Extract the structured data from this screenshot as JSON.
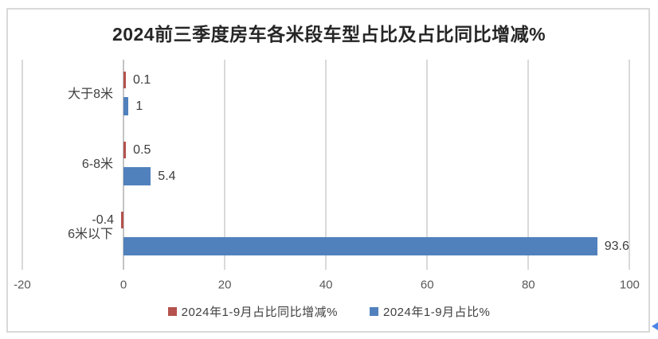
{
  "chart": {
    "title": "2024前三季度房车各米段车型占比及占比同比增减%"
  },
  "chart_data": {
    "type": "bar",
    "orientation": "horizontal",
    "title": "2024前三季度房车各米段车型占比及占比同比增减%",
    "categories": [
      "大于8米",
      "6-8米",
      "6米以下"
    ],
    "series": [
      {
        "name": "2024年1-9月占比同比增减%",
        "color": "#b5524e",
        "values": [
          0.1,
          0.5,
          -0.4
        ],
        "labels": [
          "0.1",
          "0.5",
          "-0.4"
        ]
      },
      {
        "name": "2024年1-9月占比%",
        "color": "#5181bd",
        "values": [
          1,
          5.4,
          93.6
        ],
        "labels": [
          "1",
          "5.4",
          "93.6"
        ]
      }
    ],
    "xlim": [
      -20,
      100
    ],
    "x_ticks": [
      -20,
      0,
      20,
      40,
      60,
      80,
      100
    ],
    "grid": true,
    "legend_position": "bottom",
    "value_labels": true
  },
  "colors": {
    "series_delta": "#b5524e",
    "series_share": "#5181bd",
    "gridline": "#d9d9d9",
    "zero_axis": "#c3c3c3",
    "frame_border": "#d9d9d9",
    "tick_text": "#595959",
    "label_text": "#3d3d3d",
    "title_text": "#262626",
    "corner_marker": "#4a86e8"
  }
}
